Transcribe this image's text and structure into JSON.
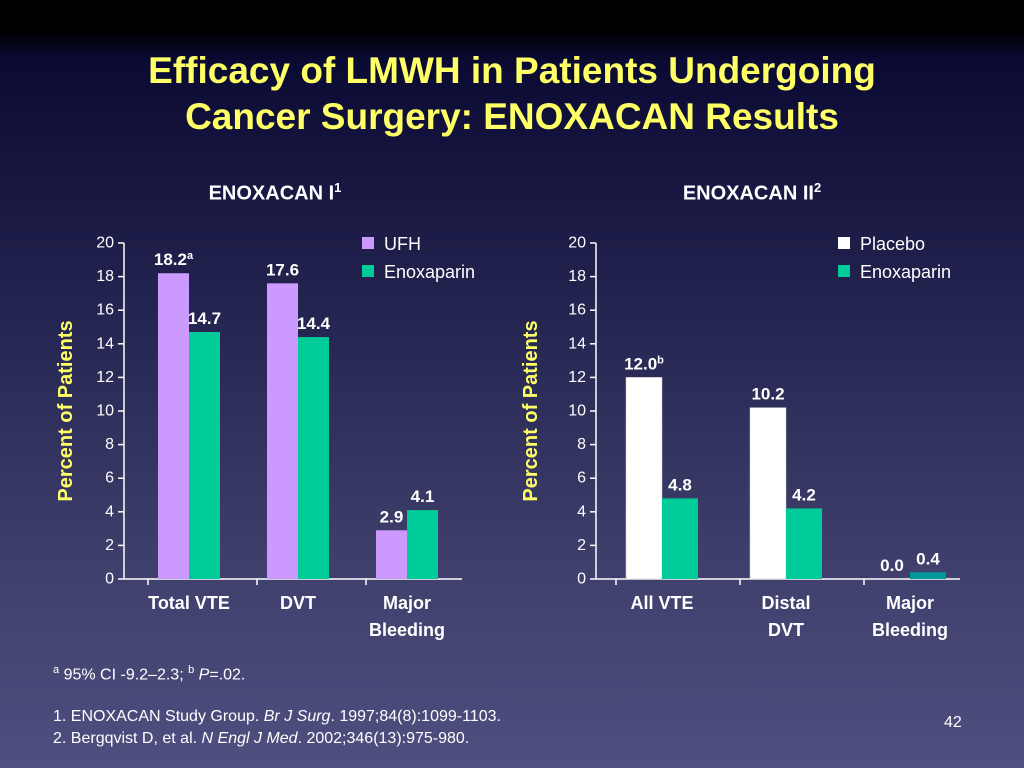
{
  "slide": {
    "title_line1": "Efficacy of LMWH in Patients Undergoing",
    "title_line2": "Cancer Surgery: ENOXACAN Results",
    "footnote": {
      "a_mark": "a",
      "a_text": " 95% CI -9.2–2.3; ",
      "b_mark": "b",
      "b_p": "P",
      "b_text": "=.02."
    },
    "references": [
      {
        "prefix": "1. ENOXACAN Study Group. ",
        "journal": "Br J Surg",
        "suffix": ". 1997;84(8):1099-1103."
      },
      {
        "prefix": "2. Bergqvist D, et al. ",
        "journal": "N Engl J Med",
        "suffix": ". 2002;346(13):975-980."
      }
    ],
    "page_number": "42",
    "colors": {
      "title": "#ffff66",
      "axis_label": "#ffff66",
      "ufh": "#cc99ff",
      "enoxaparin": "#00cc99",
      "placebo": "#ffffff",
      "enoxaparin_small": "#009999",
      "background": "#3f3f6c"
    }
  },
  "chart_data": [
    {
      "type": "bar",
      "title": "ENOXACAN I",
      "title_sup": "1",
      "ylabel": "Percent of Patients",
      "ylim": [
        0,
        20
      ],
      "yticks": [
        0,
        2,
        4,
        6,
        8,
        10,
        12,
        14,
        16,
        18,
        20
      ],
      "categories": [
        [
          "Total VTE"
        ],
        [
          "DVT"
        ],
        [
          "Major",
          "Bleeding"
        ]
      ],
      "series": [
        {
          "name": "UFH",
          "values": [
            18.2,
            17.6,
            2.9
          ],
          "labels": [
            "18.2",
            "17.6",
            "2.9"
          ],
          "label_sup": [
            "a",
            "",
            ""
          ],
          "color": "#cc99ff"
        },
        {
          "name": "Enoxaparin",
          "values": [
            14.7,
            14.4,
            4.1
          ],
          "labels": [
            "14.7",
            "14.4",
            "4.1"
          ],
          "label_sup": [
            "",
            "",
            ""
          ],
          "color": "#00cc99"
        }
      ],
      "legend": "top-right",
      "grid": false
    },
    {
      "type": "bar",
      "title": "ENOXACAN II",
      "title_sup": "2",
      "ylabel": "Percent of Patients",
      "ylim": [
        0,
        20
      ],
      "yticks": [
        0,
        2,
        4,
        6,
        8,
        10,
        12,
        14,
        16,
        18,
        20
      ],
      "categories": [
        [
          "All VTE"
        ],
        [
          "Distal",
          "DVT"
        ],
        [
          "Major",
          "Bleeding"
        ]
      ],
      "series": [
        {
          "name": "Placebo",
          "values": [
            12.0,
            10.2,
            0.0
          ],
          "labels": [
            "12.0",
            "10.2",
            "0.0"
          ],
          "label_sup": [
            "b",
            "",
            ""
          ],
          "color": "#ffffff"
        },
        {
          "name": "Enoxaparin",
          "values": [
            4.8,
            4.2,
            0.4
          ],
          "labels": [
            "4.8",
            "4.2",
            "0.4"
          ],
          "label_sup": [
            "",
            "",
            ""
          ],
          "color": "#00cc99"
        }
      ],
      "legend": "top-right",
      "grid": false
    }
  ]
}
